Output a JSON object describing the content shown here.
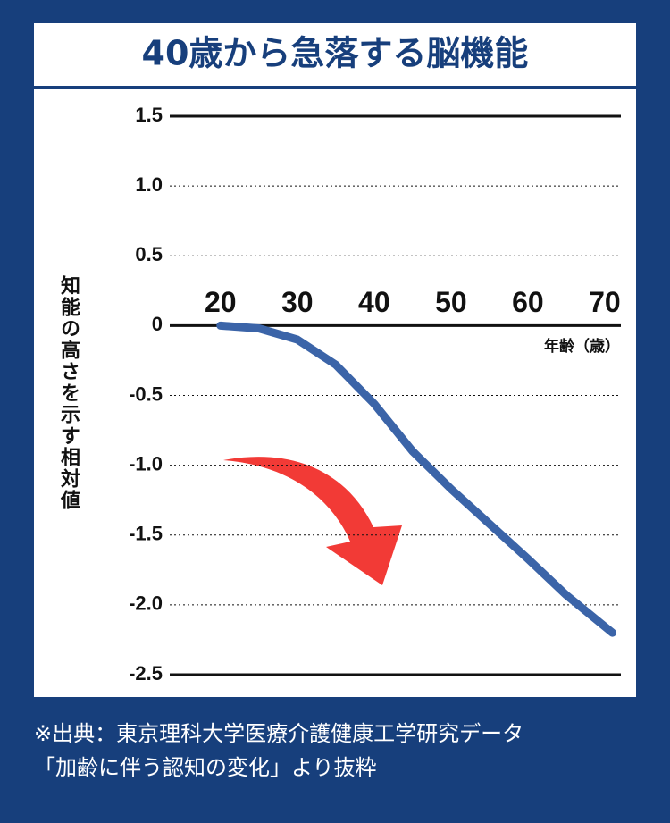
{
  "chart_data": {
    "type": "line",
    "title": "40歳から急落する脳機能",
    "x_label": "年齢（歳）",
    "y_label": "知能の高さを示す相対値",
    "x": [
      20,
      25,
      30,
      35,
      40,
      45,
      50,
      55,
      60,
      65,
      71
    ],
    "series": [
      {
        "color": "#3b64a8",
        "values": [
          0,
          -0.02,
          -0.1,
          -0.28,
          -0.56,
          -0.9,
          -1.17,
          -1.42,
          -1.67,
          -1.93,
          -2.2
        ]
      }
    ],
    "xlim": [
      13.4,
      72.1
    ],
    "xticks": [
      20,
      30,
      40,
      50,
      60,
      70
    ],
    "ylim": [
      -2.5,
      1.5
    ],
    "yticks": [
      {
        "value": 1.5,
        "label": "1.5"
      },
      {
        "value": 1,
        "label": "1.0"
      },
      0.5,
      0,
      -0.5,
      {
        "value": -1,
        "label": "-1.0"
      },
      -1.5,
      {
        "value": -2,
        "label": "-2.0"
      },
      -2.5
    ],
    "grid": true,
    "source": [
      "※出典：東京理科大学医療介護健康工学研究データ",
      "「加齢に伴う認知の変化」より抜粋"
    ]
  }
}
